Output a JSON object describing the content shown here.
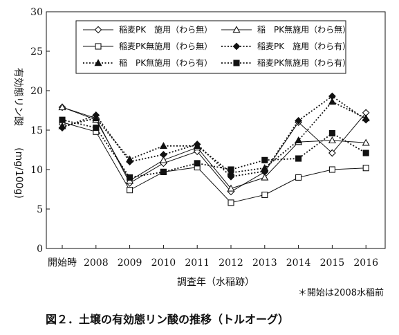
{
  "chart_data": {
    "type": "line",
    "title": "",
    "categories": [
      "開始時",
      "2008",
      "2009",
      "2010",
      "2011",
      "2012",
      "2013",
      "2014",
      "2015",
      "2016"
    ],
    "ylim": [
      0,
      30
    ],
    "yticks": [
      0,
      5,
      10,
      15,
      20,
      25,
      30
    ],
    "ylabel_line1": "有効態リン酸",
    "ylabel_line2": "(mg/100g)",
    "xlabel": "調査年（水稲跡）",
    "grid": false,
    "legend_position": "top",
    "series": [
      {
        "name": "稲麦PK　施用（わら無）",
        "line_style": "solid",
        "marker": "diamond-open",
        "values": [
          17.9,
          16.5,
          8.3,
          10.8,
          12.3,
          7.2,
          9.7,
          16.0,
          12.1,
          17.2
        ]
      },
      {
        "name": "稲　PK無施用（わら無）",
        "line_style": "solid",
        "marker": "triangle-open",
        "values": [
          17.9,
          16.3,
          8.6,
          11.2,
          12.8,
          7.6,
          9.0,
          13.5,
          13.7,
          13.4
        ]
      },
      {
        "name": "稲麦PK無施用（わら無）",
        "line_style": "solid",
        "marker": "square-open",
        "values": [
          16.0,
          14.8,
          7.4,
          9.7,
          10.3,
          5.8,
          6.8,
          9.0,
          10.0,
          10.2
        ]
      },
      {
        "name": "稲麦PK　施用（わら有）",
        "line_style": "dotted",
        "marker": "diamond-filled",
        "values": [
          15.3,
          16.9,
          11.0,
          11.9,
          13.2,
          9.1,
          9.8,
          16.2,
          19.3,
          16.3
        ]
      },
      {
        "name": "稲　PK無施用（わら有）",
        "line_style": "dotted",
        "marker": "triangle-filled",
        "values": [
          15.5,
          16.5,
          11.3,
          13.0,
          13.0,
          9.6,
          10.2,
          13.7,
          18.6,
          16.5
        ]
      },
      {
        "name": "稲麦PK無施用（わら有）",
        "line_style": "dotted",
        "marker": "square-filled",
        "values": [
          16.3,
          15.3,
          9.0,
          9.7,
          10.8,
          10.0,
          11.2,
          11.4,
          14.6,
          12.1
        ]
      }
    ]
  },
  "note": "＊開始は2008水稲前",
  "caption": "図２．土壌の有効態リン酸の推移（トルオーグ）"
}
